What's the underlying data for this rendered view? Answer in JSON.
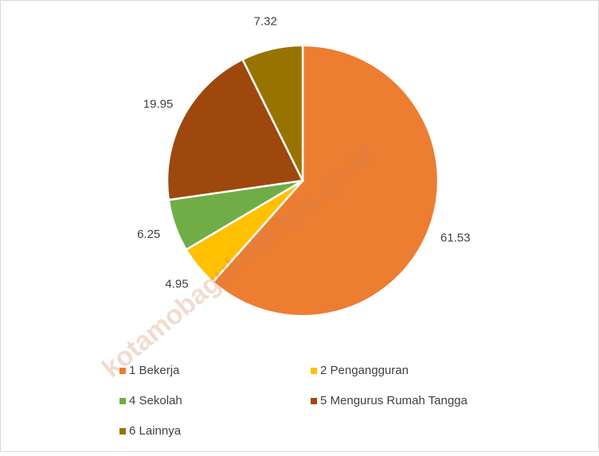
{
  "chart_data": {
    "type": "pie",
    "categories": [
      "1 Bekerja",
      "2 Pengangguran",
      "4 Sekolah",
      "5 Mengurus Rumah Tangga",
      "6 Lainnya"
    ],
    "values": [
      61.53,
      4.95,
      6.25,
      19.95,
      7.32
    ],
    "colors": [
      "#ED7D31",
      "#FFC000",
      "#70AD47",
      "#9E480E",
      "#997300"
    ],
    "legend": "bottom",
    "watermark": "kotamobagukota.bps.go.id"
  }
}
